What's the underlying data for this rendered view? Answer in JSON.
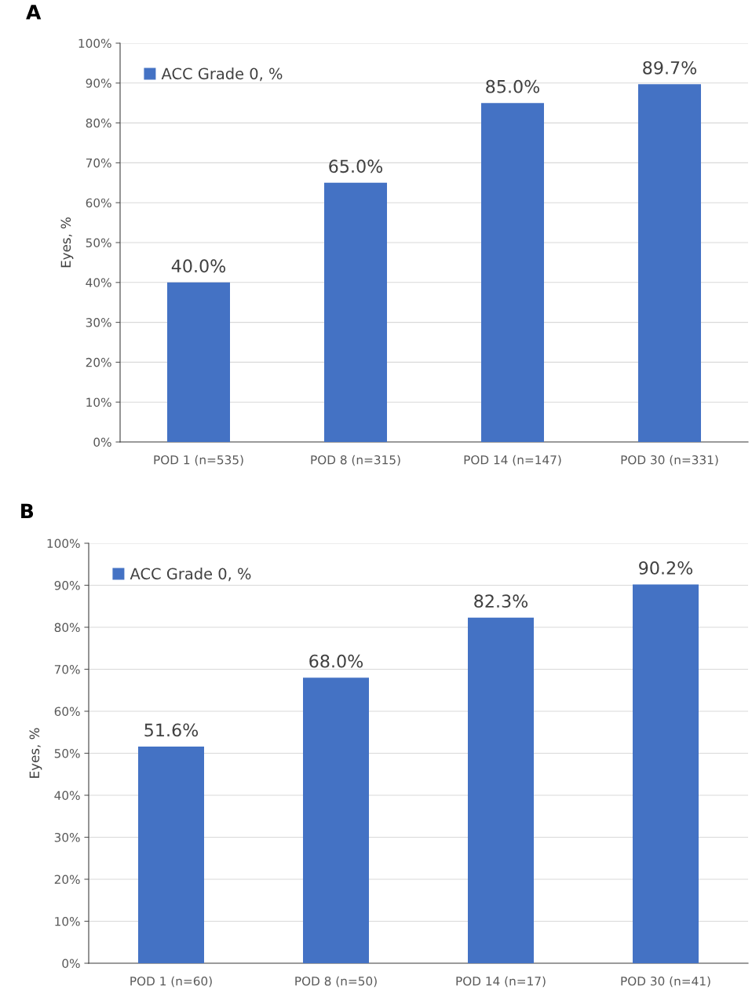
{
  "chart_data": [
    {
      "type": "bar",
      "title": "A",
      "ylabel": "Eyes, %",
      "categories": [
        "POD 1 (n=535)",
        "POD 8 (n=315)",
        "POD 14 (n=147)",
        "POD 30 (n=331)"
      ],
      "series": [
        {
          "name": "ACC Grade 0, %",
          "color": "#4472c4",
          "values": [
            40.0,
            65.0,
            85.0,
            89.7
          ],
          "value_labels": [
            "40.0%",
            "65.0%",
            "85.0%",
            "89.7%"
          ]
        }
      ],
      "ylim": [
        0,
        100
      ],
      "yticks": [
        {
          "value": 0,
          "label": "0%"
        },
        {
          "value": 10,
          "label": "10%"
        },
        {
          "value": 20,
          "label": "20%"
        },
        {
          "value": 30,
          "label": "30%"
        },
        {
          "value": 40,
          "label": "40%"
        },
        {
          "value": 50,
          "label": "50%"
        },
        {
          "value": 60,
          "label": "60%"
        },
        {
          "value": 70,
          "label": "70%"
        },
        {
          "value": 80,
          "label": "80%"
        },
        {
          "value": 90,
          "label": "90%"
        },
        {
          "value": 100,
          "label": "100%"
        }
      ],
      "grid": "y",
      "legend": "top left"
    },
    {
      "type": "bar",
      "title": "B",
      "ylabel": "Eyes, %",
      "categories": [
        "POD 1 (n=60)",
        "POD 8 (n=50)",
        "POD 14 (n=17)",
        "POD 30 (n=41)"
      ],
      "series": [
        {
          "name": "ACC Grade 0, %",
          "color": "#4472c4",
          "values": [
            51.6,
            68.0,
            82.3,
            90.2
          ],
          "value_labels": [
            "51.6%",
            "68.0%",
            "82.3%",
            "90.2%"
          ]
        }
      ],
      "ylim": [
        0,
        100
      ],
      "yticks": [
        {
          "value": 0,
          "label": "0%"
        },
        {
          "value": 10,
          "label": "10%"
        },
        {
          "value": 20,
          "label": "20%"
        },
        {
          "value": 30,
          "label": "30%"
        },
        {
          "value": 40,
          "label": "40%"
        },
        {
          "value": 50,
          "label": "50%"
        },
        {
          "value": 60,
          "label": "60%"
        },
        {
          "value": 70,
          "label": "70%"
        },
        {
          "value": 80,
          "label": "80%"
        },
        {
          "value": 90,
          "label": "90%"
        },
        {
          "value": 100,
          "label": "100%"
        }
      ],
      "grid": "y",
      "legend": "top left"
    }
  ]
}
